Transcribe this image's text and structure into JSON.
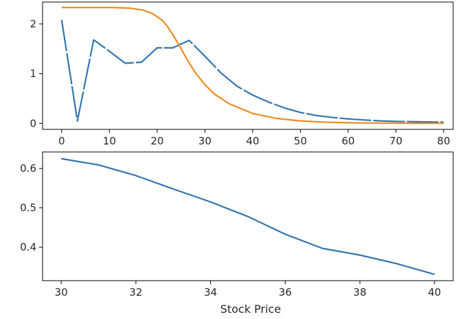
{
  "colors": {
    "blue": "#3274ae",
    "orange": "#f28a1e",
    "axis": "#000000"
  },
  "chart_data": [
    {
      "type": "line",
      "title": "",
      "xlabel": "",
      "ylabel": "",
      "xlim": [
        -4,
        82
      ],
      "ylim": [
        -0.12,
        2.44
      ],
      "x_ticks": [
        0,
        10,
        20,
        30,
        40,
        50,
        60,
        70,
        80
      ],
      "y_ticks": [
        0,
        1,
        2
      ],
      "grid": false,
      "series": [
        {
          "color": "#3274ae",
          "style": "dashed-long",
          "x": [
            0,
            3.3,
            6.7,
            10,
            13.3,
            16.7,
            20,
            23.3,
            26.7,
            30,
            33.3,
            36.7,
            40,
            43.3,
            46.7,
            50,
            53.3,
            56.7,
            60,
            63.3,
            66.7,
            70,
            73.3,
            76.7,
            80
          ],
          "y": [
            2.08,
            0.05,
            1.68,
            1.45,
            1.21,
            1.23,
            1.52,
            1.52,
            1.67,
            1.35,
            1.02,
            0.75,
            0.57,
            0.43,
            0.31,
            0.22,
            0.16,
            0.12,
            0.09,
            0.07,
            0.05,
            0.04,
            0.035,
            0.03,
            0.025
          ]
        },
        {
          "color": "#f28a1e",
          "style": "solid",
          "x": [
            0,
            5,
            10,
            14,
            17,
            19,
            21,
            22,
            23,
            24,
            25,
            26,
            27,
            28,
            30,
            32,
            35,
            40,
            45,
            50,
            55,
            60,
            65,
            70,
            75,
            80
          ],
          "y": [
            2.33,
            2.33,
            2.33,
            2.32,
            2.28,
            2.21,
            2.08,
            1.97,
            1.83,
            1.67,
            1.5,
            1.33,
            1.17,
            1.02,
            0.78,
            0.59,
            0.4,
            0.2,
            0.1,
            0.05,
            0.025,
            0.013,
            0.007,
            0.004,
            0.002,
            0.001
          ]
        }
      ]
    },
    {
      "type": "line",
      "title": "",
      "xlabel": "Stock Price",
      "ylabel": "",
      "xlim": [
        29.5,
        40.5
      ],
      "ylim": [
        0.315,
        0.642
      ],
      "x_ticks": [
        30,
        32,
        34,
        36,
        38,
        40
      ],
      "y_ticks": [
        0.4,
        0.5,
        0.6
      ],
      "grid": false,
      "series": [
        {
          "color": "#3274ae",
          "style": "solid",
          "x": [
            30,
            31,
            32,
            33,
            34,
            35,
            36,
            37,
            38,
            39,
            40
          ],
          "y": [
            0.625,
            0.609,
            0.582,
            0.548,
            0.515,
            0.478,
            0.433,
            0.397,
            0.38,
            0.358,
            0.331
          ]
        }
      ]
    }
  ]
}
